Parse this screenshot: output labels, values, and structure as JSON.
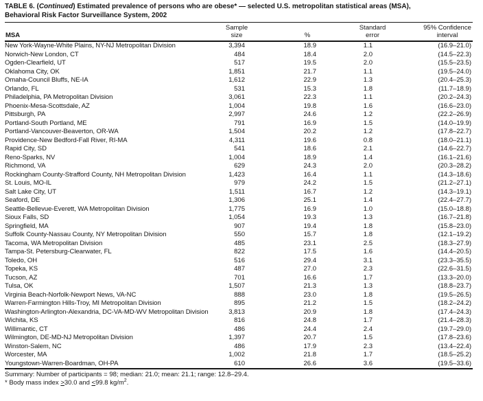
{
  "title": {
    "line1_pre": "TABLE 6. (",
    "line1_italic": "Continued",
    "line1_post": ") Estimated prevalence of persons who are obese* — selected U.S. metropolitan statistical areas (MSA),",
    "line2": "Behavioral Risk Factor Surveillance System, 2002"
  },
  "columns": {
    "msa": "MSA",
    "sample_line1": "Sample",
    "sample_line2": "size",
    "pct": "%",
    "se_line1": "Standard",
    "se_line2": "error",
    "ci_line1": "95% Confidence",
    "ci_line2": "interval"
  },
  "rows": [
    {
      "msa": "New York-Wayne-White Plains, NY-NJ Metropolitan Division",
      "n": "3,394",
      "pct": "18.9",
      "se": "1.1",
      "ci": "(16.9–21.0)"
    },
    {
      "msa": "Norwich-New London, CT",
      "n": "484",
      "pct": "18.4",
      "se": "2.0",
      "ci": "(14.5–22.3)"
    },
    {
      "msa": "Ogden-Clearfield, UT",
      "n": "517",
      "pct": "19.5",
      "se": "2.0",
      "ci": "(15.5–23.5)"
    },
    {
      "msa": "Oklahoma City, OK",
      "n": "1,851",
      "pct": "21.7",
      "se": "1.1",
      "ci": "(19.5–24.0)"
    },
    {
      "msa": "Omaha-Council Bluffs, NE-IA",
      "n": "1,612",
      "pct": "22.9",
      "se": "1.3",
      "ci": "(20.4–25.3)"
    },
    {
      "msa": "Orlando, FL",
      "n": "531",
      "pct": "15.3",
      "se": "1.8",
      "ci": "(11.7–18.9)"
    },
    {
      "msa": "Philadelphia, PA Metropolitan Division",
      "n": "3,061",
      "pct": "22.3",
      "se": "1.1",
      "ci": "(20.2–24.3)"
    },
    {
      "msa": "Phoenix-Mesa-Scottsdale, AZ",
      "n": "1,004",
      "pct": "19.8",
      "se": "1.6",
      "ci": "(16.6–23.0)"
    },
    {
      "msa": "Pittsburgh, PA",
      "n": "2,997",
      "pct": "24.6",
      "se": "1.2",
      "ci": "(22.2–26.9)"
    },
    {
      "msa": "Portland-South Portland, ME",
      "n": "791",
      "pct": "16.9",
      "se": "1.5",
      "ci": "(14.0–19.9)"
    },
    {
      "msa": "Portland-Vancouver-Beaverton, OR-WA",
      "n": "1,504",
      "pct": "20.2",
      "se": "1.2",
      "ci": "(17.8–22.7)"
    },
    {
      "msa": "Providence-New Bedford-Fall River, RI-MA",
      "n": "4,311",
      "pct": "19.6",
      "se": "0.8",
      "ci": "(18.0–21.1)"
    },
    {
      "msa": "Rapid City, SD",
      "n": "541",
      "pct": "18.6",
      "se": "2.1",
      "ci": "(14.6–22.7)"
    },
    {
      "msa": "Reno-Sparks, NV",
      "n": "1,004",
      "pct": "18.9",
      "se": "1.4",
      "ci": "(16.1–21.6)"
    },
    {
      "msa": "Richmond, VA",
      "n": "629",
      "pct": "24.3",
      "se": "2.0",
      "ci": "(20.3–28.2)"
    },
    {
      "msa": "Rockingham County-Strafford County, NH Metropolitan Division",
      "n": "1,423",
      "pct": "16.4",
      "se": "1.1",
      "ci": "(14.3–18.6)"
    },
    {
      "msa": "St. Louis, MO-IL",
      "n": "979",
      "pct": "24.2",
      "se": "1.5",
      "ci": "(21.2–27.1)"
    },
    {
      "msa": "Salt Lake City, UT",
      "n": "1,511",
      "pct": "16.7",
      "se": "1.2",
      "ci": "(14.3–19.1)"
    },
    {
      "msa": "Seaford, DE",
      "n": "1,306",
      "pct": "25.1",
      "se": "1.4",
      "ci": "(22.4–27.7)"
    },
    {
      "msa": "Seattle-Bellevue-Everett, WA Metropolitan Division",
      "n": "1,775",
      "pct": "16.9",
      "se": "1.0",
      "ci": "(15.0–18.8)"
    },
    {
      "msa": "Sioux Falls, SD",
      "n": "1,054",
      "pct": "19.3",
      "se": "1.3",
      "ci": "(16.7–21.8)"
    },
    {
      "msa": "Springfield, MA",
      "n": "907",
      "pct": "19.4",
      "se": "1.8",
      "ci": "(15.8–23.0)"
    },
    {
      "msa": "Suffolk County-Nassau County, NY Metropolitan Division",
      "n": "550",
      "pct": "15.7",
      "se": "1.8",
      "ci": "(12.1–19.2)"
    },
    {
      "msa": "Tacoma, WA Metropolitan Division",
      "n": "485",
      "pct": "23.1",
      "se": "2.5",
      "ci": "(18.3–27.9)"
    },
    {
      "msa": "Tampa-St. Petersburg-Clearwater, FL",
      "n": "822",
      "pct": "17.5",
      "se": "1.6",
      "ci": "(14.4–20.5)"
    },
    {
      "msa": "Toledo, OH",
      "n": "516",
      "pct": "29.4",
      "se": "3.1",
      "ci": "(23.3–35.5)"
    },
    {
      "msa": "Topeka, KS",
      "n": "487",
      "pct": "27.0",
      "se": "2.3",
      "ci": "(22.6–31.5)"
    },
    {
      "msa": "Tucson, AZ",
      "n": "701",
      "pct": "16.6",
      "se": "1.7",
      "ci": "(13.3–20.0)"
    },
    {
      "msa": "Tulsa, OK",
      "n": "1,507",
      "pct": "21.3",
      "se": "1.3",
      "ci": "(18.8–23.7)"
    },
    {
      "msa": "Virginia Beach-Norfolk-Newport News, VA-NC",
      "n": "888",
      "pct": "23.0",
      "se": "1.8",
      "ci": "(19.5–26.5)"
    },
    {
      "msa": "Warren-Farmington Hills-Troy, MI Metropolitan Division",
      "n": "895",
      "pct": "21.2",
      "se": "1.5",
      "ci": "(18.2–24.2)"
    },
    {
      "msa": "Washington-Arlington-Alexandria, DC-VA-MD-WV Metropolitan Division",
      "n": "3,813",
      "pct": "20.9",
      "se": "1.8",
      "ci": "(17.4–24.3)"
    },
    {
      "msa": "Wichita, KS",
      "n": "816",
      "pct": "24.8",
      "se": "1.7",
      "ci": "(21.4–28.3)"
    },
    {
      "msa": "Willimantic, CT",
      "n": "486",
      "pct": "24.4",
      "se": "2.4",
      "ci": "(19.7–29.0)"
    },
    {
      "msa": "Wilmington, DE-MD-NJ Metropolitan Division",
      "n": "1,397",
      "pct": "20.7",
      "se": "1.5",
      "ci": "(17.8–23.6)"
    },
    {
      "msa": "Winston-Salem, NC",
      "n": "486",
      "pct": "17.9",
      "se": "2.3",
      "ci": "(13.4–22.4)"
    },
    {
      "msa": "Worcester, MA",
      "n": "1,002",
      "pct": "21.8",
      "se": "1.7",
      "ci": "(18.5–25.2)"
    },
    {
      "msa": "Youngstown-Warren-Boardman, OH-PA",
      "n": "610",
      "pct": "26.6",
      "se": "3.6",
      "ci": "(19.5–33.6)"
    }
  ],
  "summary": "Summary: Number of participants = 98; median: 21.0; mean: 21.1; range: 12.8–29.4.",
  "footnote": {
    "p1": "* Body mass index ",
    "gte": ">",
    "v1": "30.0 and ",
    "lte": "<",
    "v2": "99.8 kg/m",
    "sup": "2",
    "end": "."
  }
}
